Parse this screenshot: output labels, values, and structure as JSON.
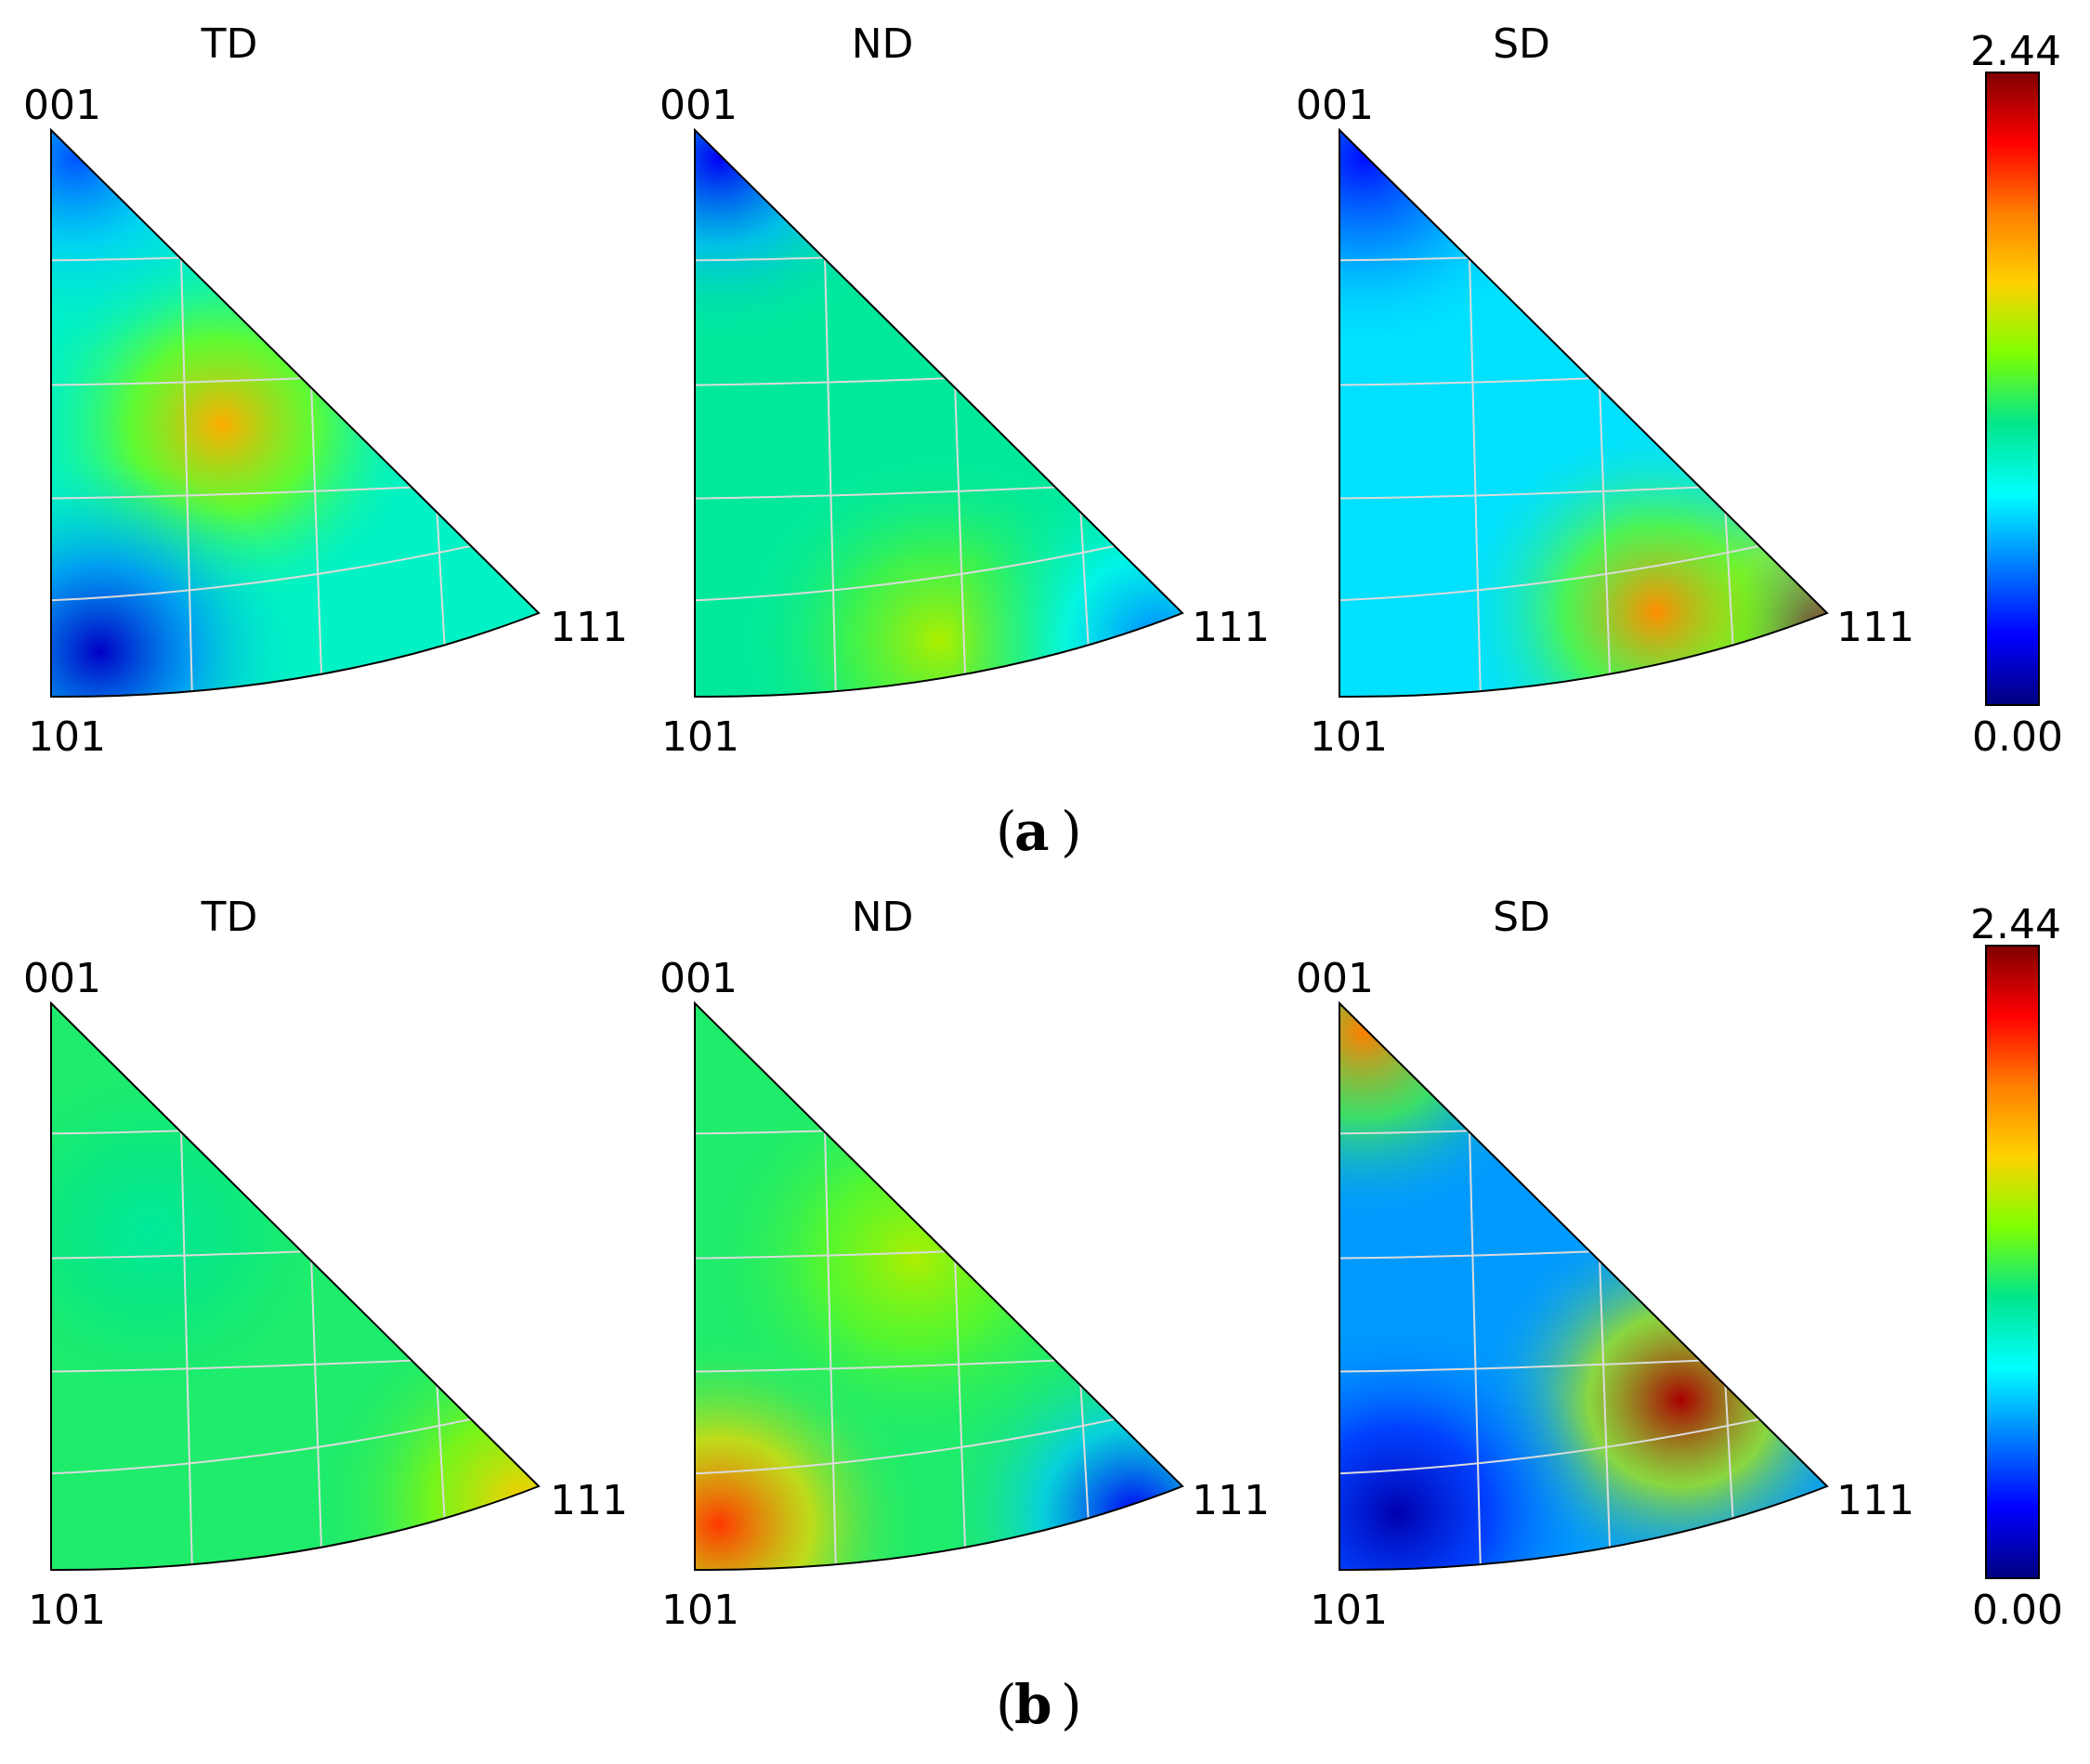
{
  "figure": {
    "panels": [
      {
        "id": "a",
        "caption_letter": "a"
      },
      {
        "id": "b",
        "caption_letter": "b"
      }
    ],
    "colorbar": {
      "max_label": "2.44",
      "min_label": "0.00",
      "stops": [
        "#00007f",
        "#0000ff",
        "#007fff",
        "#00ffff",
        "#00e68c",
        "#7fff00",
        "#ffd200",
        "#ff7f00",
        "#ff0000",
        "#7f0000"
      ]
    },
    "corner_labels": {
      "top": "001",
      "bottom_left": "101",
      "right": "111"
    }
  },
  "chart_data": [
    {
      "type": "heatmap",
      "panel": "a",
      "title": "TD",
      "colorbar_range": [
        0.0,
        2.44
      ],
      "hotspots": [
        {
          "u": 0.35,
          "v": 0.52,
          "value": 1.75
        },
        {
          "u": 0.1,
          "v": 0.92,
          "value": 0.15
        },
        {
          "u": 0.05,
          "v": 0.05,
          "value": 0.45
        }
      ],
      "base_value": 0.95
    },
    {
      "type": "heatmap",
      "panel": "a",
      "title": "ND",
      "colorbar_range": [
        0.0,
        2.44
      ],
      "hotspots": [
        {
          "u": 0.05,
          "v": 0.05,
          "value": 0.25
        },
        {
          "u": 0.5,
          "v": 0.9,
          "value": 1.45
        },
        {
          "u": 0.95,
          "v": 0.9,
          "value": 0.55
        }
      ],
      "base_value": 1.05
    },
    {
      "type": "heatmap",
      "panel": "a",
      "title": "SD",
      "colorbar_range": [
        0.0,
        2.44
      ],
      "hotspots": [
        {
          "u": 0.97,
          "v": 0.88,
          "value": 2.4
        },
        {
          "u": 0.65,
          "v": 0.85,
          "value": 1.85
        },
        {
          "u": 0.05,
          "v": 0.05,
          "value": 0.3
        }
      ],
      "base_value": 0.75
    },
    {
      "type": "heatmap",
      "panel": "b",
      "title": "TD",
      "colorbar_range": [
        0.0,
        2.44
      ],
      "hotspots": [
        {
          "u": 0.97,
          "v": 0.88,
          "value": 1.65
        },
        {
          "u": 0.2,
          "v": 0.4,
          "value": 1.05
        }
      ],
      "base_value": 1.15
    },
    {
      "type": "heatmap",
      "panel": "b",
      "title": "ND",
      "colorbar_range": [
        0.0,
        2.44
      ],
      "hotspots": [
        {
          "u": 0.05,
          "v": 0.92,
          "value": 2.05
        },
        {
          "u": 0.9,
          "v": 0.9,
          "value": 0.25
        },
        {
          "u": 0.45,
          "v": 0.45,
          "value": 1.45
        }
      ],
      "base_value": 1.15
    },
    {
      "type": "heatmap",
      "panel": "b",
      "title": "SD",
      "colorbar_range": [
        0.0,
        2.44
      ],
      "hotspots": [
        {
          "u": 0.05,
          "v": 0.05,
          "value": 1.9
        },
        {
          "u": 0.7,
          "v": 0.7,
          "value": 2.35
        },
        {
          "u": 0.12,
          "v": 0.9,
          "value": 0.1
        }
      ],
      "base_value": 0.6
    }
  ]
}
